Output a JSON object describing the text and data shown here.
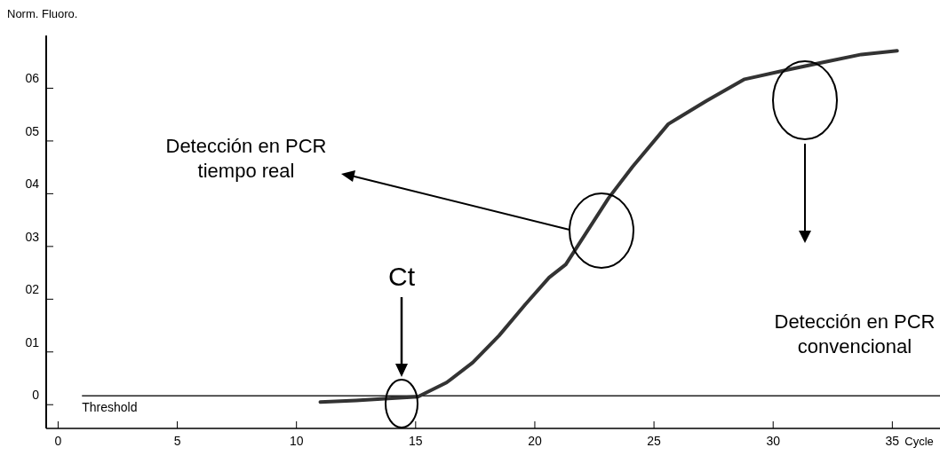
{
  "chart_data": {
    "type": "line",
    "ylabel": "Norm. Fluoro.",
    "xlabel": "Cycle",
    "xlim": [
      -0.5,
      37
    ],
    "xticks": [
      0,
      5,
      10,
      15,
      20,
      25,
      30,
      35
    ],
    "ylim": [
      -0.45,
      7
    ],
    "yticks": [
      0,
      {
        "value": 1,
        "label": "01"
      },
      {
        "value": 2,
        "label": "02"
      },
      {
        "value": 3,
        "label": "03"
      },
      {
        "value": 4,
        "label": "04"
      },
      {
        "value": 5,
        "label": "05"
      },
      {
        "value": 6,
        "label": "06"
      }
    ],
    "series": [
      {
        "color": "#333333",
        "x": [
          11.0,
          12.5,
          14.0,
          15.1,
          16.3,
          17.4,
          18.5,
          19.6,
          20.6,
          21.3,
          23.1,
          24.1,
          25.6,
          27.2,
          28.8,
          30.5,
          32.1,
          33.7,
          35.2
        ],
        "values": [
          0.05,
          0.08,
          0.12,
          0.15,
          0.42,
          0.8,
          1.31,
          1.9,
          2.41,
          2.66,
          3.92,
          4.51,
          5.32,
          5.76,
          6.17,
          6.34,
          6.49,
          6.64,
          6.71
        ]
      }
    ],
    "ref_lines": [
      {
        "axis": "y",
        "value": 0.17,
        "label": "Threshold",
        "color": "#222222"
      }
    ],
    "annotations": [
      "Ct",
      "Detección en PCR\ntiempo real",
      "Detección en PCR\nconvencional"
    ],
    "marker": "none",
    "line_style": "solid"
  }
}
